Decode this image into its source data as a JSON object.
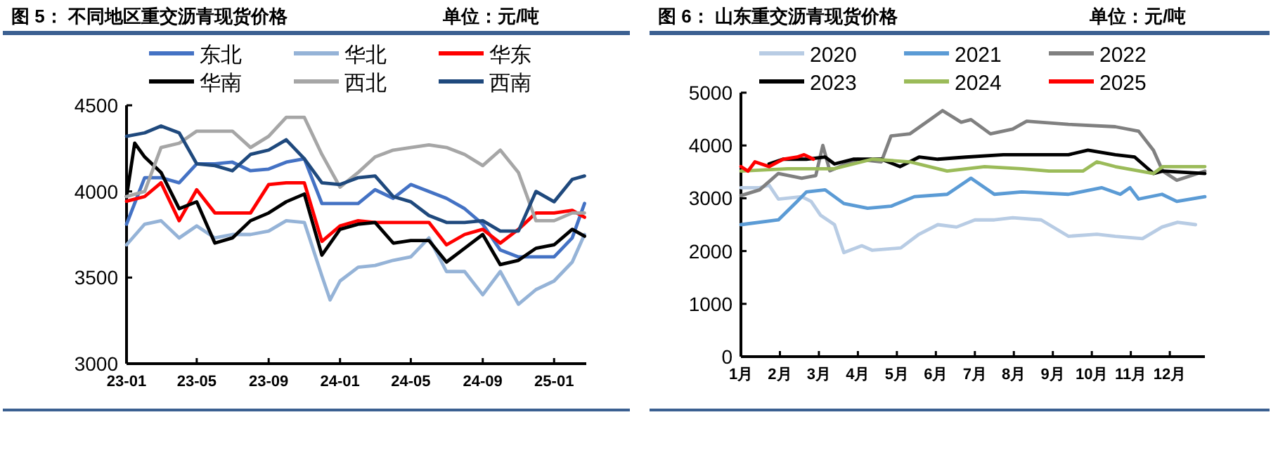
{
  "chart_data": [
    {
      "type": "line",
      "title": "图 5：  不同地区重交沥青现货价格",
      "subtitle": "单位：元/吨",
      "legend": "top",
      "marker": "none",
      "line_style": "solid",
      "grid": false,
      "x": [
        "2023-01-01",
        "2023-02-01",
        "2023-03-01",
        "2023-04-01",
        "2023-05-01",
        "2023-06-01",
        "2023-07-01",
        "2023-08-01",
        "2023-09-01",
        "2023-10-01",
        "2023-11-01",
        "2023-12-01",
        "2024-01-01",
        "2024-02-01",
        "2024-03-01",
        "2024-04-01",
        "2024-05-01",
        "2024-06-01",
        "2024-07-01",
        "2024-08-01",
        "2024-09-01",
        "2024-10-01",
        "2024-11-01",
        "2024-12-01",
        "2025-01-01",
        "2025-02-01",
        "2025-02-22"
      ],
      "xlim": [
        "2023-01-01",
        "2025-02-25"
      ],
      "xticks": [
        {
          "value": "2023-01-01",
          "label": "23-01"
        },
        {
          "value": "2023-05-01",
          "label": "23-05"
        },
        {
          "value": "2023-09-01",
          "label": "23-09"
        },
        {
          "value": "2024-01-01",
          "label": "24-01"
        },
        {
          "value": "2024-05-01",
          "label": "24-05"
        },
        {
          "value": "2024-09-01",
          "label": "24-09"
        },
        {
          "value": "2025-01-01",
          "label": "25-01"
        }
      ],
      "ylim": [
        3000,
        4500
      ],
      "yticks": [
        3000,
        3500,
        4000,
        4500
      ],
      "series": [
        {
          "name": "东北",
          "color": "#4472c4",
          "values": [
            3810,
            4080,
            4080,
            4050,
            4160,
            4160,
            4170,
            4120,
            4130,
            4170,
            4190,
            3930,
            3930,
            3930,
            4010,
            3960,
            4040,
            4000,
            3960,
            3900,
            3810,
            3660,
            3620,
            3620,
            3620,
            3730,
            3930
          ]
        },
        {
          "name": "华北",
          "color": "#95b3d7",
          "x": [
            "2023-01-01",
            "2023-02-01",
            "2023-03-01",
            "2023-04-01",
            "2023-05-01",
            "2023-06-01",
            "2023-07-01",
            "2023-08-01",
            "2023-09-01",
            "2023-10-01",
            "2023-11-01",
            "2023-12-01",
            "2023-12-15",
            "2024-01-01",
            "2024-02-01",
            "2024-03-01",
            "2024-04-01",
            "2024-05-01",
            "2024-06-01",
            "2024-07-01",
            "2024-08-01",
            "2024-09-01",
            "2024-10-01",
            "2024-11-01",
            "2024-12-01",
            "2025-01-01",
            "2025-02-01",
            "2025-02-22"
          ],
          "values": [
            3690,
            3810,
            3830,
            3730,
            3800,
            3730,
            3750,
            3750,
            3770,
            3830,
            3820,
            3510,
            3370,
            3480,
            3560,
            3570,
            3600,
            3620,
            3730,
            3535,
            3535,
            3400,
            3535,
            3345,
            3430,
            3480,
            3590,
            3750
          ]
        },
        {
          "name": "华东",
          "color": "#ff0000",
          "values": [
            3943,
            3970,
            4050,
            3830,
            4010,
            3875,
            3875,
            3875,
            4040,
            4050,
            4050,
            3710,
            3800,
            3830,
            3820,
            3820,
            3820,
            3820,
            3690,
            3750,
            3780,
            3700,
            3780,
            3875,
            3875,
            3890,
            3850
          ]
        },
        {
          "name": "华南",
          "color": "#000000",
          "x": [
            "2023-01-01",
            "2023-01-15",
            "2023-02-01",
            "2023-03-01",
            "2023-04-01",
            "2023-05-01",
            "2023-06-01",
            "2023-07-01",
            "2023-08-01",
            "2023-09-01",
            "2023-10-01",
            "2023-11-01",
            "2023-12-01",
            "2024-01-01",
            "2024-02-01",
            "2024-03-01",
            "2024-04-01",
            "2024-05-01",
            "2024-06-01",
            "2024-07-01",
            "2024-08-01",
            "2024-09-01",
            "2024-10-01",
            "2024-11-01",
            "2024-12-01",
            "2025-01-01",
            "2025-02-01",
            "2025-02-22"
          ],
          "values": [
            3970,
            4280,
            4200,
            4110,
            3900,
            3940,
            3700,
            3730,
            3830,
            3875,
            3940,
            3985,
            3630,
            3780,
            3810,
            3820,
            3700,
            3715,
            3715,
            3590,
            3670,
            3750,
            3575,
            3600,
            3670,
            3690,
            3780,
            3740
          ]
        },
        {
          "name": "西北",
          "color": "#a6a6a6",
          "values": [
            3970,
            4000,
            4255,
            4280,
            4350,
            4350,
            4350,
            4255,
            4320,
            4430,
            4430,
            4215,
            4025,
            4110,
            4200,
            4240,
            4255,
            4270,
            4255,
            4215,
            4150,
            4240,
            4110,
            3830,
            3830,
            3875,
            3875
          ]
        },
        {
          "name": "西南",
          "color": "#1f497d",
          "values": [
            4320,
            4340,
            4380,
            4340,
            4160,
            4150,
            4120,
            4215,
            4240,
            4300,
            4190,
            4050,
            4040,
            4080,
            4090,
            3970,
            3940,
            3860,
            3820,
            3820,
            3830,
            3770,
            3770,
            4000,
            3940,
            4070,
            4090
          ]
        }
      ]
    },
    {
      "type": "line",
      "title": "图 6：  山东重交沥青现货价格",
      "subtitle": "单位：元/吨",
      "legend": "top",
      "marker": "none",
      "line_style": "solid",
      "grid": false,
      "xlim": [
        1,
        12.9
      ],
      "xticks": [
        {
          "value": 1,
          "label": "1月"
        },
        {
          "value": 2,
          "label": "2月"
        },
        {
          "value": 3,
          "label": "3月"
        },
        {
          "value": 4,
          "label": "4月"
        },
        {
          "value": 5,
          "label": "5月"
        },
        {
          "value": 6,
          "label": "6月"
        },
        {
          "value": 7,
          "label": "7月"
        },
        {
          "value": 8,
          "label": "8月"
        },
        {
          "value": 9,
          "label": "9月"
        },
        {
          "value": 10,
          "label": "10月"
        },
        {
          "value": 11,
          "label": "11月"
        },
        {
          "value": 12,
          "label": "12月"
        }
      ],
      "ylim": [
        0,
        5000
      ],
      "yticks": [
        0,
        1000,
        2000,
        3000,
        4000,
        5000
      ],
      "series": [
        {
          "name": "2020",
          "color": "#b8cce4",
          "x": [
            1,
            1.48,
            1.72,
            1.96,
            2.56,
            2.8,
            3.04,
            3.4,
            3.64,
            4.1,
            4.37,
            5.1,
            5.57,
            6.05,
            6.53,
            7,
            7.5,
            7.97,
            8.7,
            9.4,
            10.13,
            10.6,
            11.3,
            11.8,
            12.2,
            12.66
          ],
          "values": [
            3200,
            3200,
            3250,
            2985,
            3030,
            2940,
            2680,
            2500,
            1970,
            2100,
            2015,
            2060,
            2320,
            2500,
            2455,
            2590,
            2590,
            2630,
            2590,
            2280,
            2320,
            2280,
            2235,
            2455,
            2545,
            2500
          ]
        },
        {
          "name": "2021",
          "color": "#5b9bd5",
          "x": [
            1,
            1.96,
            2.44,
            2.68,
            3.16,
            3.64,
            4.25,
            4.85,
            5.45,
            6.29,
            6.9,
            7.5,
            8.2,
            9.4,
            10.25,
            10.73,
            10.98,
            11.2,
            11.8,
            12.18,
            12.9
          ],
          "values": [
            2500,
            2590,
            2940,
            3120,
            3160,
            2900,
            2810,
            2850,
            3030,
            3075,
            3380,
            3075,
            3120,
            3075,
            3200,
            3075,
            3200,
            2985,
            3075,
            2940,
            3030
          ]
        },
        {
          "name": "2022",
          "color": "#808080",
          "x": [
            1,
            1.48,
            1.96,
            2.56,
            2.92,
            3.1,
            3.28,
            4,
            4.6,
            4.85,
            5.33,
            5.93,
            6.17,
            6.65,
            6.9,
            7.4,
            7.97,
            8.33,
            9.4,
            10.6,
            11.2,
            11.58,
            11.82,
            12.18,
            12.9
          ],
          "values": [
            3050,
            3160,
            3470,
            3380,
            3430,
            4000,
            3520,
            3740,
            3690,
            4180,
            4220,
            4530,
            4660,
            4440,
            4490,
            4220,
            4310,
            4460,
            4400,
            4355,
            4270,
            3910,
            3515,
            3340,
            3515
          ]
        },
        {
          "name": "2023",
          "color": "#000000",
          "x": [
            1.72,
            2.08,
            2.68,
            3.16,
            3.4,
            3.88,
            4.6,
            5.08,
            5.57,
            6.05,
            6.77,
            7.73,
            8.7,
            9.4,
            9.9,
            10.6,
            11.1,
            11.58,
            11.82,
            12.9
          ],
          "values": [
            3650,
            3740,
            3740,
            3780,
            3650,
            3740,
            3740,
            3600,
            3780,
            3740,
            3780,
            3825,
            3825,
            3825,
            3910,
            3825,
            3780,
            3470,
            3515,
            3470
          ]
        },
        {
          "name": "2024",
          "color": "#9bbb59",
          "x": [
            1,
            2.2,
            3.4,
            4.37,
            5.33,
            6.29,
            7.25,
            8.2,
            8.9,
            9.77,
            10.13,
            10.6,
            11.58,
            11.82,
            12.9
          ],
          "values": [
            3515,
            3560,
            3560,
            3740,
            3690,
            3515,
            3600,
            3560,
            3515,
            3515,
            3690,
            3600,
            3470,
            3600,
            3600
          ]
        },
        {
          "name": "2025",
          "color": "#ff0000",
          "x": [
            1,
            1.18,
            1.36,
            1.72,
            2.08,
            2.44,
            2.62,
            2.86
          ],
          "values": [
            3600,
            3515,
            3690,
            3600,
            3740,
            3780,
            3825,
            3740
          ]
        }
      ]
    }
  ]
}
